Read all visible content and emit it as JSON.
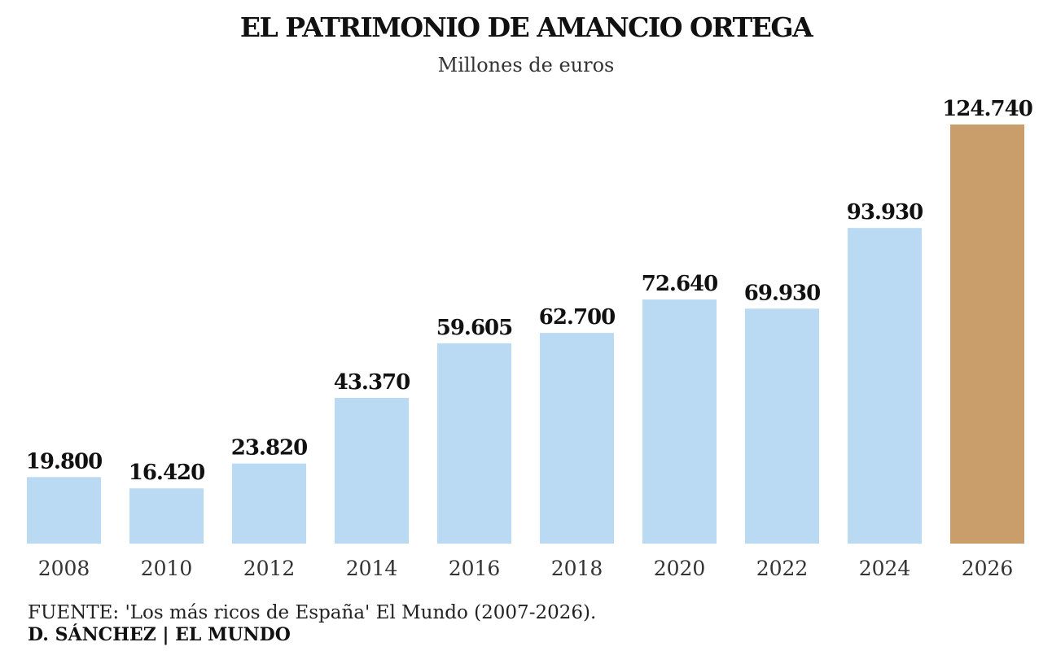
{
  "chart_data": {
    "type": "bar",
    "title": "EL PATRIMONIO DE AMANCIO ORTEGA",
    "subtitle": "Millones de euros",
    "categories": [
      "2008",
      "2010",
      "2012",
      "2014",
      "2016",
      "2018",
      "2020",
      "2022",
      "2024",
      "2026"
    ],
    "values": [
      19800,
      16420,
      23820,
      43370,
      59605,
      62700,
      72640,
      69930,
      93930,
      124740
    ],
    "value_labels": [
      "19.800",
      "16.420",
      "23.820",
      "43.370",
      "59.605",
      "62.700",
      "72.640",
      "69.930",
      "93.930",
      "124.740"
    ],
    "highlight_category": "2026",
    "colors": {
      "bar": "#bad9f3",
      "highlight": "#c99e6a",
      "text": "#111111"
    },
    "ylim": [
      0,
      124740
    ],
    "grid": false,
    "legend": "none"
  },
  "footer": {
    "source": "FUENTE: 'Los más ricos de España' El Mundo (2007-2026).",
    "credit": "D. SÁNCHEZ | EL MUNDO"
  }
}
